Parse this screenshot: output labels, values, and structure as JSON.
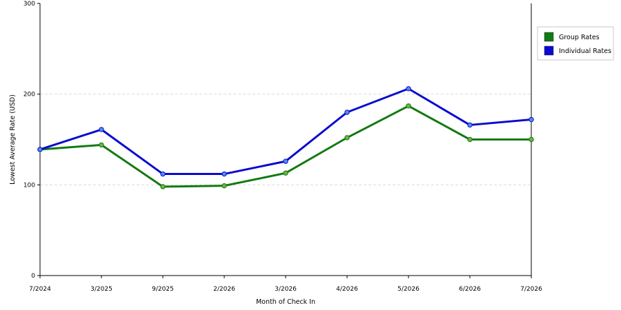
{
  "chart_data": {
    "type": "line",
    "title": "",
    "xlabel": "Month of Check In",
    "ylabel": "Lowest Average Rate (USD)",
    "ylim": [
      0,
      300
    ],
    "yticks": [
      0,
      100,
      200,
      300
    ],
    "grid": "horizontal dashed",
    "legend_position": "right",
    "categories": [
      "7/2024",
      "3/2025",
      "9/2025",
      "2/2026",
      "3/2026",
      "4/2026",
      "5/2026",
      "6/2026",
      "7/2026"
    ],
    "series": [
      {
        "name": "Group Rates",
        "color": "#127a12",
        "marker_color": "#6fb04a",
        "values": [
          139,
          144,
          98,
          99,
          113,
          152,
          187,
          150,
          150
        ]
      },
      {
        "name": "Individual Rates",
        "color": "#0a0ad0",
        "marker_color": "#4f8fe8",
        "values": [
          139,
          161,
          112,
          112,
          126,
          180,
          206,
          166,
          172
        ]
      }
    ]
  }
}
